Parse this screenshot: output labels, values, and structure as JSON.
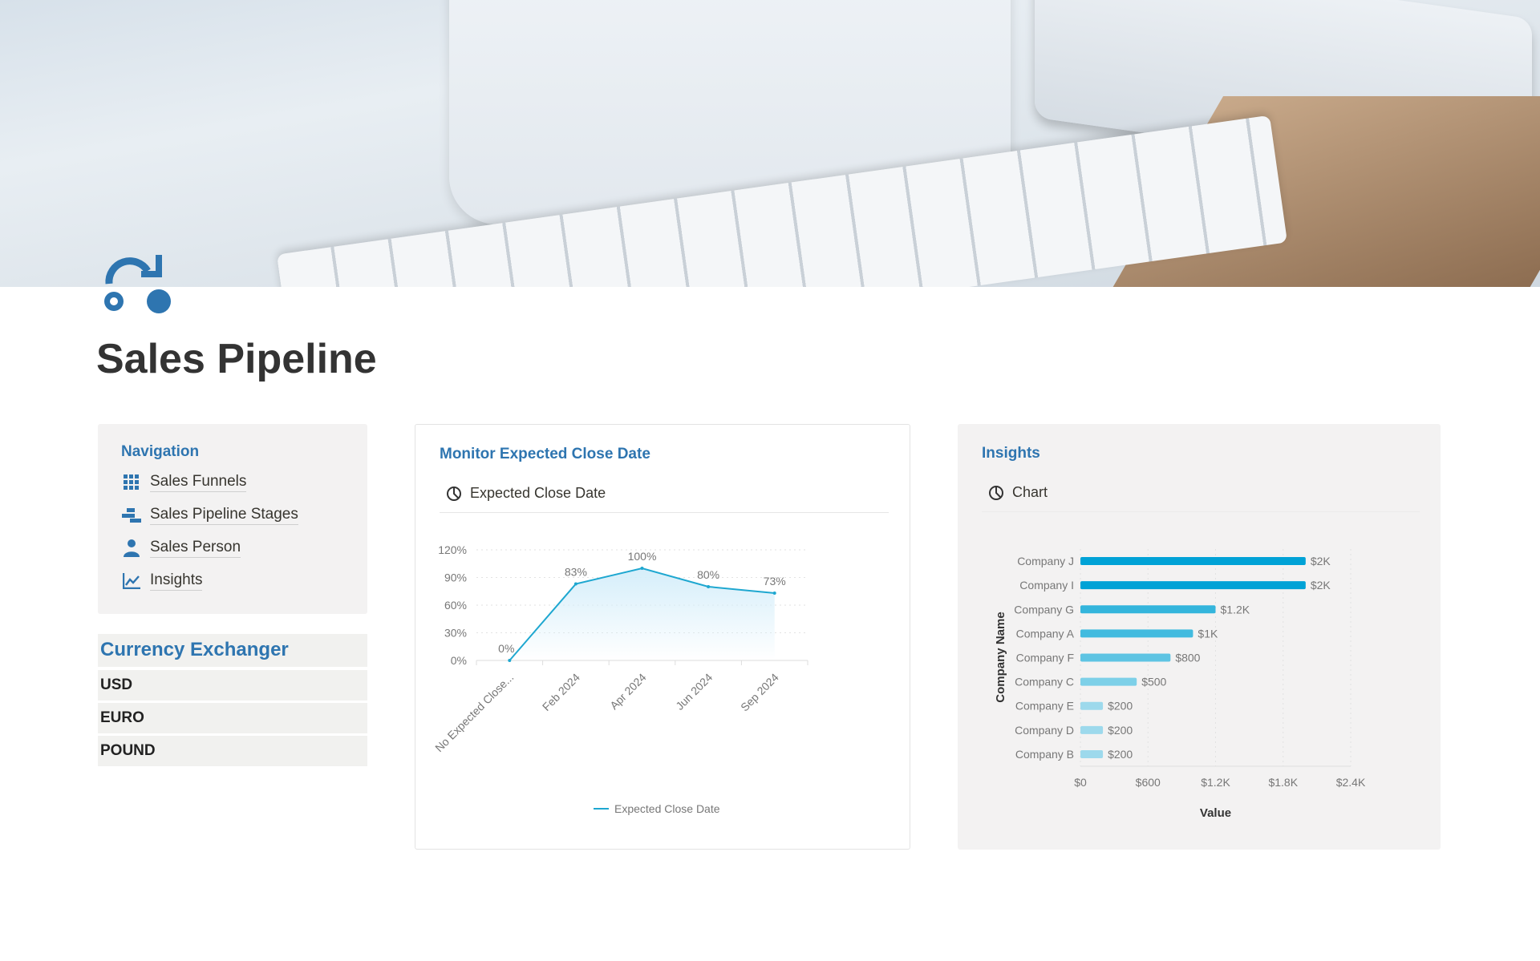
{
  "page": {
    "title": "Sales Pipeline",
    "icon": "pipeline-cart-icon"
  },
  "navigation": {
    "heading": "Navigation",
    "items": [
      {
        "label": "Sales Funnels",
        "icon": "grid-icon"
      },
      {
        "label": "Sales Pipeline Stages",
        "icon": "stages-icon"
      },
      {
        "label": "Sales Person",
        "icon": "person-icon"
      },
      {
        "label": "Insights",
        "icon": "line-chart-icon"
      }
    ]
  },
  "currency": {
    "heading": "Currency Exchanger",
    "items": [
      "USD",
      "EURO",
      "POUND"
    ]
  },
  "colors": {
    "accent": "#2e75b0",
    "line": "#1ea7d0"
  },
  "chart_data": [
    {
      "type": "line",
      "title": "Monitor Expected Close Date",
      "view_label": "Expected Close Date",
      "categories": [
        "No Expected Close...",
        "Feb 2024",
        "Apr 2024",
        "Jun 2024",
        "Sep 2024"
      ],
      "series": [
        {
          "name": "Expected Close Date",
          "values": [
            0,
            83,
            100,
            80,
            73
          ]
        }
      ],
      "data_labels": [
        "0%",
        "83%",
        "100%",
        "80%",
        "73%"
      ],
      "yticks": [
        "0%",
        "30%",
        "60%",
        "90%",
        "120%"
      ],
      "ylim": [
        0,
        120
      ],
      "grid": true,
      "legend": "bottom"
    },
    {
      "type": "bar",
      "orientation": "horizontal",
      "title": "Insights",
      "view_label": "Chart",
      "categories": [
        "Company J",
        "Company I",
        "Company G",
        "Company A",
        "Company F",
        "Company C",
        "Company E",
        "Company D",
        "Company B"
      ],
      "values": [
        2000,
        2000,
        1200,
        1000,
        800,
        500,
        200,
        200,
        200
      ],
      "data_labels": [
        "$2K",
        "$2K",
        "$1.2K",
        "$1K",
        "$800",
        "$500",
        "$200",
        "$200",
        "$200"
      ],
      "xticks": [
        "$0",
        "$600",
        "$1.2K",
        "$1.8K",
        "$2.4K"
      ],
      "xlim": [
        0,
        2400
      ],
      "xlabel": "Value",
      "ylabel": "Company Name",
      "grid": true,
      "bar_colors": [
        "#00a2d6",
        "#00a2d6",
        "#34b5dc",
        "#42bbdf",
        "#5ec4e3",
        "#7dd0e8",
        "#9dd9ec",
        "#9dd9ec",
        "#9dd9ec"
      ]
    }
  ]
}
